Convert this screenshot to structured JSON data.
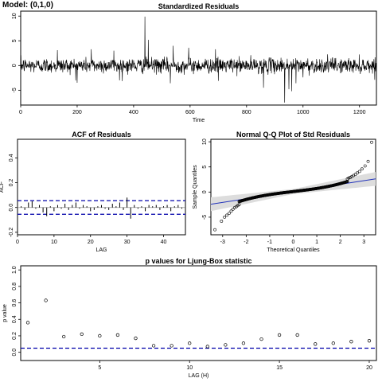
{
  "model_label": "Model: (0,1,0)",
  "chart_data": [
    {
      "type": "line",
      "title": "Standardized Residuals",
      "xlabel": "Time",
      "ylabel": "",
      "xlim": [
        0,
        1260
      ],
      "ylim": [
        -8,
        11
      ],
      "xticks": [
        0,
        200,
        400,
        600,
        800,
        1000,
        1200
      ],
      "yticks": [
        -5,
        0,
        5,
        10
      ],
      "n": 1259,
      "spikes": [
        [
          130,
          3.1
        ],
        [
          250,
          3.3
        ],
        [
          330,
          3.0
        ],
        [
          440,
          9.9
        ],
        [
          452,
          5.2
        ],
        [
          540,
          4.0
        ],
        [
          595,
          3.6
        ],
        [
          690,
          3.3
        ],
        [
          200,
          -3.5
        ],
        [
          350,
          -3.0
        ],
        [
          530,
          -3.6
        ],
        [
          700,
          -3.1
        ],
        [
          860,
          -4.5
        ],
        [
          935,
          -7.5
        ],
        [
          950,
          -4.8
        ],
        [
          975,
          -3.6
        ],
        [
          1000,
          -2.4
        ],
        [
          960,
          -5.2
        ]
      ]
    },
    {
      "type": "bar",
      "title": "ACF of Residuals",
      "xlabel": "LAG",
      "ylabel": "ACF",
      "xlim": [
        0,
        46
      ],
      "ylim": [
        -0.22,
        0.55
      ],
      "xticks": [
        0,
        10,
        20,
        30,
        40
      ],
      "yticks": [
        -0.2,
        0.0,
        0.2,
        0.4
      ],
      "confidence_band": 0.055,
      "values": [
        0.01,
        -0.02,
        0.04,
        0.05,
        -0.01,
        0.02,
        -0.04,
        -0.07,
        0.01,
        -0.03,
        0.02,
        -0.01,
        0.03,
        -0.02,
        0.02,
        0.04,
        -0.01,
        0.02,
        0.01,
        -0.03,
        -0.02,
        0.01,
        0.02,
        -0.01,
        -0.02,
        0.03,
        0.01,
        0.04,
        -0.02,
        0.08,
        -0.09,
        0.02,
        -0.01,
        0.01,
        -0.03,
        0.02,
        0.01,
        0.02,
        -0.02,
        0.01,
        0.02,
        -0.03,
        0.01,
        0.02,
        -0.01,
        0.01
      ]
    },
    {
      "type": "scatter",
      "title": "Normal Q-Q Plot of Std Residuals",
      "xlabel": "Theoretical Quantiles",
      "ylabel": "Sample Quantiles",
      "xlim": [
        -3.5,
        3.5
      ],
      "ylim": [
        -8.5,
        10.5
      ],
      "xticks": [
        -3,
        -2,
        -1,
        0,
        1,
        2,
        3
      ],
      "yticks": [
        -5,
        0,
        5,
        10
      ],
      "n": 1259,
      "reference_line": {
        "intercept": 0.1,
        "slope": 0.72
      },
      "tails": [
        [
          -3.33,
          -7.5
        ],
        [
          -3.05,
          -5.8
        ],
        [
          -2.92,
          -5.0
        ],
        [
          -2.82,
          -4.6
        ],
        [
          -2.72,
          -4.2
        ],
        [
          -2.64,
          -3.8
        ],
        [
          -2.56,
          -3.4
        ],
        [
          -2.49,
          -3.1
        ],
        [
          -2.42,
          -2.9
        ],
        [
          -2.36,
          -2.7
        ],
        [
          -2.3,
          -2.5
        ],
        [
          2.3,
          2.6
        ],
        [
          2.36,
          2.8
        ],
        [
          2.42,
          2.9
        ],
        [
          2.49,
          3.1
        ],
        [
          2.56,
          3.3
        ],
        [
          2.64,
          3.5
        ],
        [
          2.72,
          3.8
        ],
        [
          2.82,
          4.1
        ],
        [
          2.92,
          4.6
        ],
        [
          3.05,
          5.2
        ],
        [
          3.18,
          6.1
        ],
        [
          3.33,
          9.9
        ]
      ]
    },
    {
      "type": "scatter",
      "title": "p values for Ljung-Box statistic",
      "xlabel": "LAG (H)",
      "ylabel": "p value",
      "xlim": [
        0.6,
        20.4
      ],
      "ylim": [
        -0.1,
        1.05
      ],
      "xticks": [
        5,
        10,
        15,
        20
      ],
      "yticks": [
        0.0,
        0.2,
        0.4,
        0.6,
        0.8,
        1.0
      ],
      "significance_line": 0.05,
      "x": [
        1,
        2,
        3,
        4,
        5,
        6,
        7,
        8,
        9,
        10,
        11,
        12,
        13,
        14,
        15,
        16,
        17,
        18,
        19,
        20
      ],
      "values": [
        0.36,
        0.63,
        0.19,
        0.22,
        0.2,
        0.21,
        0.17,
        0.08,
        0.08,
        0.11,
        0.07,
        0.09,
        0.11,
        0.16,
        0.21,
        0.21,
        0.1,
        0.11,
        0.13,
        0.14
      ]
    }
  ]
}
